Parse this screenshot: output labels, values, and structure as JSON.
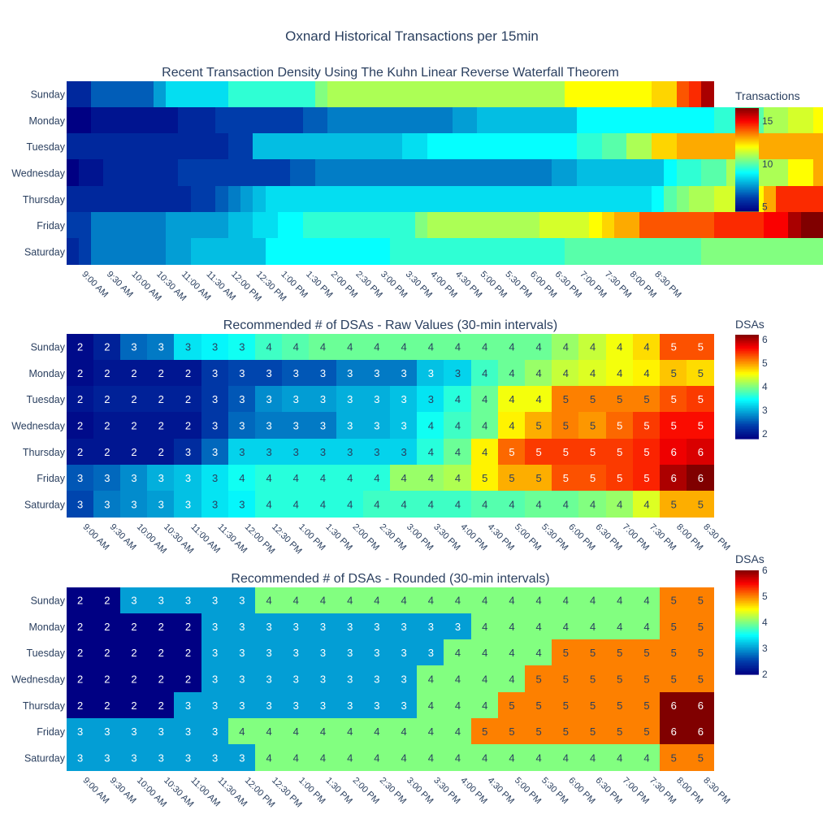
{
  "figure_title": "Oxnard Historical Transactions per 15min",
  "chart_data": [
    {
      "type": "heatmap",
      "title": "Recent Transaction Density Using The Kuhn Linear Reverse Waterfall Theorem",
      "colorbar_title": "Transactions",
      "colorscale": "jet",
      "zmin": 4.5,
      "zmax": 16.5,
      "colorbar_ticks": [
        5,
        10,
        15
      ],
      "rows": [
        "Sunday",
        "Monday",
        "Tuesday",
        "Wednesday",
        "Thursday",
        "Friday",
        "Saturday"
      ],
      "x_tick_labels": [
        "9:00 AM",
        "9:30 AM",
        "10:00 AM",
        "10:30 AM",
        "11:00 AM",
        "11:30 AM",
        "12:00 PM",
        "12:30 PM",
        "1:00 PM",
        "1:30 PM",
        "2:00 PM",
        "2:30 PM",
        "3:00 PM",
        "3:30 PM",
        "4:00 PM",
        "4:30 PM",
        "5:00 PM",
        "5:30 PM",
        "6:00 PM",
        "6:30 PM",
        "7:00 PM",
        "7:30 PM",
        "8:00 PM",
        "8:30 PM"
      ],
      "x_ticks_every": 2,
      "show_values": false,
      "z": [
        [
          5.5,
          5.5,
          6.5,
          6.5,
          6.5,
          6.5,
          6.5,
          7.5,
          8.5,
          8.5,
          8.5,
          8.5,
          8.5,
          9.5,
          9.5,
          9.5,
          9.5,
          9.5,
          9.5,
          9.5,
          10.5,
          11,
          11,
          11,
          11,
          11,
          11,
          11,
          11,
          11,
          11,
          11,
          11,
          11,
          11,
          11,
          11,
          11,
          11,
          11,
          12,
          12,
          12,
          12,
          12,
          12,
          12,
          12.5,
          12.5,
          14,
          14.5,
          16
        ],
        [
          4.5,
          4.5,
          5,
          5,
          5,
          5,
          5,
          5,
          5,
          5.5,
          5.5,
          5.5,
          6,
          6,
          6,
          6,
          6,
          6,
          6,
          6.5,
          6.5,
          7,
          7,
          7,
          7,
          7,
          7,
          7,
          7,
          7,
          7,
          7.5,
          7.5,
          8,
          8,
          8,
          8,
          8,
          8,
          8,
          8,
          9,
          9,
          9,
          9,
          9,
          9,
          9,
          9,
          9,
          9,
          9,
          9.5,
          9.5,
          10,
          10,
          11,
          11,
          11.5,
          11.5,
          12,
          12,
          12,
          12,
          12.5,
          12.5,
          12.5,
          12.5,
          12.5,
          12.5,
          12.5,
          12.5,
          14,
          13.5,
          13.5,
          13.5
        ],
        [
          5.5,
          5.5,
          5.5,
          5.5,
          5.5,
          5.5,
          5.5,
          5.5,
          5.5,
          5.5,
          5.5,
          5.5,
          5.5,
          6,
          6,
          8,
          8,
          8,
          8,
          8,
          8,
          8,
          8,
          8,
          8,
          8,
          8,
          8.5,
          8.5,
          9,
          9,
          9,
          9,
          9,
          9,
          9,
          9,
          9,
          9,
          9,
          9,
          9.5,
          9.5,
          10,
          10,
          11,
          11,
          12.5,
          12.5,
          13,
          13,
          13,
          13,
          13,
          13,
          13,
          13,
          13,
          13,
          13,
          13,
          13,
          13,
          13,
          13,
          13,
          13,
          13,
          13,
          13,
          14,
          14,
          15
        ],
        [
          4.5,
          5,
          5,
          5.5,
          5.5,
          5.5,
          5.5,
          5.5,
          5.5,
          6,
          6,
          6,
          6,
          6,
          6,
          6,
          6,
          6,
          6.5,
          6.5,
          7,
          7,
          7,
          7,
          7,
          7,
          7,
          7,
          7,
          7,
          7,
          7,
          7,
          7,
          7,
          7,
          7,
          7,
          7,
          7.5,
          7.5,
          8,
          8,
          8,
          8,
          8,
          8,
          8,
          9,
          9.5,
          9.5,
          10,
          10,
          11,
          11,
          11,
          11,
          11,
          12,
          12,
          13,
          13,
          13,
          13,
          13,
          13,
          13,
          13,
          13.5,
          13.5,
          14.5,
          14.5,
          14.5,
          14.5,
          14.5,
          14.5,
          14.5,
          14.5,
          14.5,
          15,
          15.5,
          15.5,
          15.5
        ],
        [
          5.5,
          5.5,
          5.5,
          5.5,
          5.5,
          5.5,
          5.5,
          5.5,
          5.5,
          5.5,
          6,
          6,
          6.5,
          7,
          7.5,
          8,
          8.5,
          8.5,
          8.5,
          8.5,
          8.5,
          8.5,
          8.5,
          8.5,
          8.5,
          8.5,
          8.5,
          8.5,
          8.5,
          8.5,
          8.5,
          8.5,
          8.5,
          8.5,
          8.5,
          8.5,
          8.5,
          8.5,
          8.5,
          8.5,
          8.5,
          8.5,
          8.5,
          8.5,
          8.5,
          8.5,
          8.5,
          9,
          10,
          10.5,
          11,
          11,
          11.5,
          11.5,
          12,
          12,
          13,
          14.5,
          14.5,
          14.5,
          14.5,
          14.5,
          14.5,
          14.5,
          14.5,
          14.5,
          14.5,
          14.5,
          14.5,
          14.5,
          14.5,
          14.5,
          16,
          16.5,
          15.5,
          15.5
        ],
        [
          6,
          6,
          7,
          7,
          7,
          7,
          7,
          7,
          7.5,
          7.5,
          7.5,
          7.5,
          7.5,
          8,
          8,
          8.5,
          8.5,
          9,
          9,
          9.5,
          9.5,
          9.5,
          9.5,
          9.5,
          9.5,
          9.5,
          9.5,
          9.5,
          10.5,
          11,
          11,
          11,
          11,
          11,
          11,
          11,
          11,
          11,
          11.5,
          11.5,
          11.5,
          11.5,
          12,
          12.5,
          13,
          13,
          14,
          14,
          14,
          14,
          14,
          14,
          14.5,
          14.5,
          14.5,
          14.5,
          15,
          15,
          16,
          16.5,
          16.5,
          17
        ],
        [
          5.5,
          6,
          7,
          7,
          7,
          7,
          7,
          7,
          7.5,
          7.5,
          8,
          8,
          8,
          8,
          8,
          8,
          9,
          9,
          9,
          9,
          9,
          9,
          9,
          9,
          9,
          9,
          9.5,
          9.5,
          9.5,
          9.5,
          9.5,
          9.5,
          9.5,
          9.5,
          9.5,
          9.5,
          9.5,
          9.5,
          9.5,
          9.5,
          10,
          10,
          10,
          10,
          10,
          10,
          10,
          10,
          10,
          10,
          10,
          10.5,
          10.5,
          10.5,
          10.5,
          10.5,
          10.5,
          10.5,
          10.5,
          10.5,
          10.5,
          10.5,
          10.5,
          10.5,
          11,
          11,
          12,
          12,
          13,
          13,
          14,
          14.5,
          15.5,
          15.5
        ]
      ]
    },
    {
      "type": "heatmap",
      "title": "Recommended # of DSAs - Raw Values (30-min intervals)",
      "colorbar_title": "DSAs",
      "colorscale": "jet",
      "zmin": 1.8,
      "zmax": 6.2,
      "colorbar_ticks": [
        2,
        3,
        4,
        5,
        6
      ],
      "rows": [
        "Sunday",
        "Monday",
        "Tuesday",
        "Wednesday",
        "Thursday",
        "Friday",
        "Saturday"
      ],
      "x_tick_labels": [
        "9:00 AM",
        "9:30 AM",
        "10:00 AM",
        "10:30 AM",
        "11:00 AM",
        "11:30 AM",
        "12:00 PM",
        "12:30 PM",
        "1:00 PM",
        "1:30 PM",
        "2:00 PM",
        "2:30 PM",
        "3:00 PM",
        "3:30 PM",
        "4:00 PM",
        "4:30 PM",
        "5:00 PM",
        "5:30 PM",
        "6:00 PM",
        "6:30 PM",
        "7:00 PM",
        "7:30 PM",
        "8:00 PM",
        "8:30 PM"
      ],
      "x_ticks_every": 1,
      "show_values": true,
      "z": [
        [
          1.9,
          2.1,
          2.6,
          2.7,
          3.3,
          3.4,
          3.5,
          3.7,
          3.8,
          3.9,
          3.9,
          3.9,
          3.9,
          3.9,
          3.9,
          3.9,
          3.9,
          3.9,
          4.1,
          4.3,
          4.5,
          4.7,
          5.3,
          5.3
        ],
        [
          1.9,
          2.0,
          2.0,
          2.0,
          2.0,
          2.3,
          2.4,
          2.4,
          2.5,
          2.5,
          2.7,
          2.7,
          2.7,
          3.1,
          3.2,
          3.7,
          3.9,
          4.1,
          4.3,
          4.4,
          4.5,
          4.6,
          4.8,
          4.7
        ],
        [
          2.0,
          2.1,
          2.1,
          2.1,
          2.1,
          2.3,
          2.5,
          2.8,
          2.9,
          2.9,
          3.0,
          3.0,
          3.1,
          3.3,
          3.6,
          3.9,
          4.5,
          4.5,
          5.1,
          5.1,
          5.1,
          5.1,
          5.3,
          5.4
        ],
        [
          1.9,
          2.0,
          2.0,
          2.0,
          2.0,
          2.3,
          2.6,
          2.7,
          2.7,
          2.7,
          3.0,
          3.0,
          3.1,
          3.5,
          3.7,
          3.9,
          4.6,
          4.9,
          5.1,
          5.0,
          5.2,
          5.4,
          5.6,
          5.6
        ],
        [
          2.0,
          2.0,
          2.0,
          2.0,
          2.2,
          2.6,
          3.2,
          3.2,
          3.2,
          3.2,
          3.2,
          3.2,
          3.2,
          3.6,
          3.9,
          4.6,
          5.2,
          5.4,
          5.4,
          5.4,
          5.4,
          5.5,
          5.7,
          5.8
        ],
        [
          2.5,
          2.6,
          2.8,
          3.0,
          3.1,
          3.3,
          3.5,
          3.6,
          3.6,
          3.6,
          3.6,
          3.6,
          4.1,
          4.1,
          4.2,
          4.6,
          4.9,
          4.9,
          5.3,
          5.3,
          5.4,
          5.5,
          6.0,
          6.2
        ],
        [
          2.4,
          2.7,
          2.8,
          2.9,
          3.1,
          3.3,
          3.4,
          3.6,
          3.6,
          3.6,
          3.6,
          3.7,
          3.7,
          3.7,
          3.7,
          3.8,
          3.8,
          3.9,
          3.9,
          4.0,
          4.1,
          4.4,
          4.9,
          4.9
        ]
      ],
      "labels": [
        [
          "2",
          "2",
          "3",
          "3",
          "3",
          "3",
          "3",
          "4",
          "4",
          "4",
          "4",
          "4",
          "4",
          "4",
          "4",
          "4",
          "4",
          "4",
          "4",
          "4",
          "4",
          "4",
          "5",
          "5"
        ],
        [
          "2",
          "2",
          "2",
          "2",
          "2",
          "3",
          "3",
          "3",
          "3",
          "3",
          "3",
          "3",
          "3",
          "3",
          "3",
          "4",
          "4",
          "4",
          "4",
          "4",
          "4",
          "4",
          "5",
          "5"
        ],
        [
          "2",
          "2",
          "2",
          "2",
          "2",
          "3",
          "3",
          "3",
          "3",
          "3",
          "3",
          "3",
          "3",
          "3",
          "4",
          "4",
          "4",
          "4",
          "5",
          "5",
          "5",
          "5",
          "5",
          "5"
        ],
        [
          "2",
          "2",
          "2",
          "2",
          "2",
          "3",
          "3",
          "3",
          "3",
          "3",
          "3",
          "3",
          "3",
          "4",
          "4",
          "4",
          "4",
          "5",
          "5",
          "5",
          "5",
          "5",
          "5",
          "5"
        ],
        [
          "2",
          "2",
          "2",
          "2",
          "3",
          "3",
          "3",
          "3",
          "3",
          "3",
          "3",
          "3",
          "3",
          "4",
          "4",
          "4",
          "5",
          "5",
          "5",
          "5",
          "5",
          "5",
          "6",
          "6"
        ],
        [
          "3",
          "3",
          "3",
          "3",
          "3",
          "3",
          "4",
          "4",
          "4",
          "4",
          "4",
          "4",
          "4",
          "4",
          "4",
          "5",
          "5",
          "5",
          "5",
          "5",
          "5",
          "5",
          "6",
          "6"
        ],
        [
          "3",
          "3",
          "3",
          "3",
          "3",
          "3",
          "3",
          "4",
          "4",
          "4",
          "4",
          "4",
          "4",
          "4",
          "4",
          "4",
          "4",
          "4",
          "4",
          "4",
          "4",
          "4",
          "5",
          "5"
        ]
      ]
    },
    {
      "type": "heatmap",
      "title": "Recommended # of DSAs - Rounded (30-min intervals)",
      "colorbar_title": "DSAs",
      "colorscale": "jet",
      "zmin": 2,
      "zmax": 6,
      "colorbar_ticks": [
        2,
        3,
        4,
        5,
        6
      ],
      "rows": [
        "Sunday",
        "Monday",
        "Tuesday",
        "Wednesday",
        "Thursday",
        "Friday",
        "Saturday"
      ],
      "x_tick_labels": [
        "9:00 AM",
        "9:30 AM",
        "10:00 AM",
        "10:30 AM",
        "11:00 AM",
        "11:30 AM",
        "12:00 PM",
        "12:30 PM",
        "1:00 PM",
        "1:30 PM",
        "2:00 PM",
        "2:30 PM",
        "3:00 PM",
        "3:30 PM",
        "4:00 PM",
        "4:30 PM",
        "5:00 PM",
        "5:30 PM",
        "6:00 PM",
        "6:30 PM",
        "7:00 PM",
        "7:30 PM",
        "8:00 PM",
        "8:30 PM"
      ],
      "x_ticks_every": 1,
      "show_values": true,
      "z": [
        [
          2,
          2,
          3,
          3,
          3,
          3,
          3,
          4,
          4,
          4,
          4,
          4,
          4,
          4,
          4,
          4,
          4,
          4,
          4,
          4,
          4,
          4,
          5,
          5
        ],
        [
          2,
          2,
          2,
          2,
          2,
          3,
          3,
          3,
          3,
          3,
          3,
          3,
          3,
          3,
          3,
          4,
          4,
          4,
          4,
          4,
          4,
          4,
          5,
          5
        ],
        [
          2,
          2,
          2,
          2,
          2,
          3,
          3,
          3,
          3,
          3,
          3,
          3,
          3,
          3,
          4,
          4,
          4,
          4,
          5,
          5,
          5,
          5,
          5,
          5
        ],
        [
          2,
          2,
          2,
          2,
          2,
          3,
          3,
          3,
          3,
          3,
          3,
          3,
          3,
          4,
          4,
          4,
          4,
          5,
          5,
          5,
          5,
          5,
          5,
          5
        ],
        [
          2,
          2,
          2,
          2,
          3,
          3,
          3,
          3,
          3,
          3,
          3,
          3,
          3,
          4,
          4,
          4,
          5,
          5,
          5,
          5,
          5,
          5,
          6,
          6
        ],
        [
          3,
          3,
          3,
          3,
          3,
          3,
          4,
          4,
          4,
          4,
          4,
          4,
          4,
          4,
          4,
          5,
          5,
          5,
          5,
          5,
          5,
          5,
          6,
          6
        ],
        [
          3,
          3,
          3,
          3,
          3,
          3,
          3,
          4,
          4,
          4,
          4,
          4,
          4,
          4,
          4,
          4,
          4,
          4,
          4,
          4,
          4,
          4,
          5,
          5
        ]
      ]
    }
  ]
}
